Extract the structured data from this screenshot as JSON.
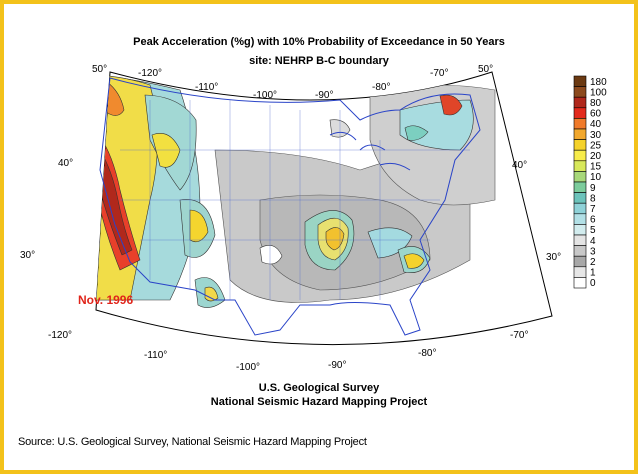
{
  "title": "Peak Acceleration (%g) with 10% Probability of Exceedance in 50 Years",
  "subtitle": "site: NEHRP B-C boundary",
  "date_stamp": "Nov. 1996",
  "footer": {
    "line1": "U.S. Geological Survey",
    "line2": "National Seismic Hazard Mapping Project"
  },
  "source": "Source: U.S. Geological Survey, National Seismic Hazard Mapping Project",
  "graticule": {
    "top_longitudes": [
      "-120°",
      "-110°",
      "-100°",
      "-90°",
      "-80°",
      "-70°"
    ],
    "bottom_longitudes": [
      "-120°",
      "-110°",
      "-100°",
      "-90°",
      "-80°",
      "-70°"
    ],
    "left_latitudes": [
      "50°",
      "40°",
      "30°"
    ],
    "right_latitudes": [
      "50°",
      "40°",
      "30°"
    ]
  },
  "legend": {
    "levels": [
      "180",
      "100",
      "80",
      "60",
      "40",
      "30",
      "25",
      "20",
      "15",
      "10",
      "9",
      "8",
      "7",
      "6",
      "5",
      "4",
      "3",
      "2",
      "1",
      "0"
    ],
    "colors": [
      "#6b3a12",
      "#8c4a1e",
      "#b0281c",
      "#e32a1c",
      "#f07a2a",
      "#f2a82e",
      "#f5d22a",
      "#f7ec4a",
      "#d8e85a",
      "#a8d87a",
      "#7ccc9c",
      "#6cc3bb",
      "#8fd2d8",
      "#b2e0e6",
      "#d2ecee",
      "#e4e4e4",
      "#c8c8c8",
      "#a8a8a8",
      "#e6e6e6",
      "#ffffff"
    ]
  }
}
